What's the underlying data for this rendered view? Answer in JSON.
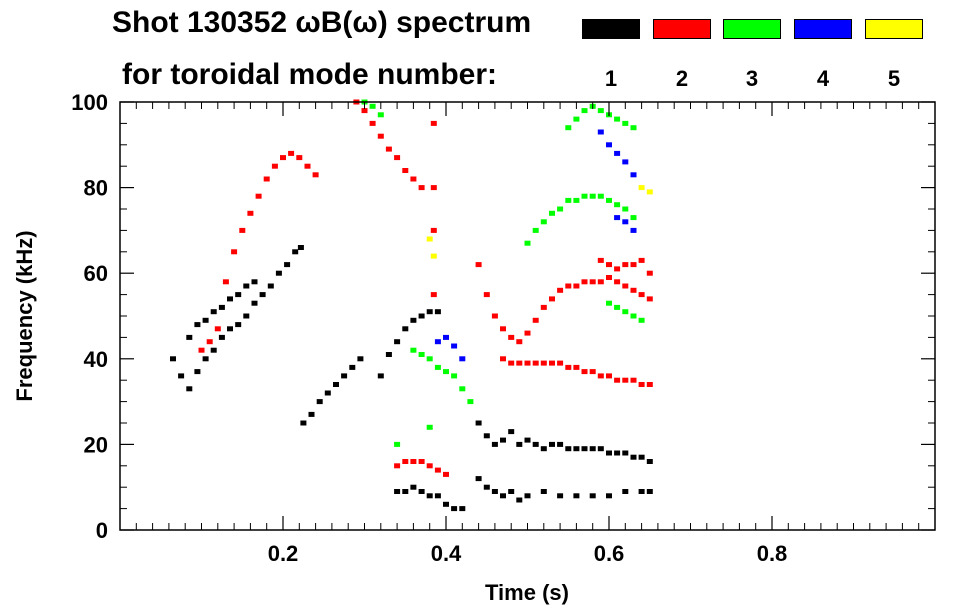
{
  "chart_data": {
    "type": "scatter",
    "title_line1": "Shot 130352 ωB(ω) spectrum",
    "title_line2": "for toroidal mode number:",
    "xlabel": "Time (s)",
    "ylabel": "Frequency (kHz)",
    "xlim": [
      0.0,
      1.0
    ],
    "ylim": [
      0,
      100
    ],
    "xticks": [
      0.2,
      0.4,
      0.6,
      0.8
    ],
    "xtick_labels": [
      "0.2",
      "0.4",
      "0.6",
      "0.8"
    ],
    "yticks": [
      0,
      20,
      40,
      60,
      80,
      100
    ],
    "ytick_labels": [
      "0",
      "20",
      "40",
      "60",
      "80",
      "100"
    ],
    "grid": false,
    "legend_position": "top-right",
    "legend": [
      {
        "label": "1",
        "color": "#000000"
      },
      {
        "label": "2",
        "color": "#ff0000"
      },
      {
        "label": "3",
        "color": "#00ff00"
      },
      {
        "label": "4",
        "color": "#0000ff"
      },
      {
        "label": "5",
        "color": "#ffff00"
      }
    ],
    "series": [
      {
        "name": "1",
        "color": "#000000",
        "points": [
          [
            0.065,
            40
          ],
          [
            0.075,
            36
          ],
          [
            0.085,
            33
          ],
          [
            0.095,
            37
          ],
          [
            0.105,
            40
          ],
          [
            0.115,
            42
          ],
          [
            0.125,
            45
          ],
          [
            0.135,
            47
          ],
          [
            0.145,
            48
          ],
          [
            0.155,
            50
          ],
          [
            0.165,
            53
          ],
          [
            0.175,
            55
          ],
          [
            0.185,
            57
          ],
          [
            0.195,
            60
          ],
          [
            0.205,
            62
          ],
          [
            0.215,
            65
          ],
          [
            0.222,
            66
          ],
          [
            0.085,
            45
          ],
          [
            0.095,
            48
          ],
          [
            0.105,
            49
          ],
          [
            0.115,
            51
          ],
          [
            0.125,
            52
          ],
          [
            0.135,
            54
          ],
          [
            0.145,
            55
          ],
          [
            0.155,
            57
          ],
          [
            0.165,
            58
          ],
          [
            0.225,
            25
          ],
          [
            0.235,
            27
          ],
          [
            0.245,
            30
          ],
          [
            0.255,
            32
          ],
          [
            0.265,
            34
          ],
          [
            0.275,
            36
          ],
          [
            0.285,
            38
          ],
          [
            0.295,
            40
          ],
          [
            0.32,
            36
          ],
          [
            0.33,
            41
          ],
          [
            0.34,
            44
          ],
          [
            0.35,
            47
          ],
          [
            0.36,
            49
          ],
          [
            0.37,
            50
          ],
          [
            0.38,
            51
          ],
          [
            0.39,
            51
          ],
          [
            0.44,
            25
          ],
          [
            0.45,
            22
          ],
          [
            0.46,
            20
          ],
          [
            0.47,
            21
          ],
          [
            0.48,
            23
          ],
          [
            0.49,
            20
          ],
          [
            0.5,
            21
          ],
          [
            0.51,
            20
          ],
          [
            0.52,
            19
          ],
          [
            0.53,
            20
          ],
          [
            0.54,
            20
          ],
          [
            0.55,
            19
          ],
          [
            0.56,
            19
          ],
          [
            0.57,
            19
          ],
          [
            0.58,
            19
          ],
          [
            0.59,
            19
          ],
          [
            0.6,
            18
          ],
          [
            0.61,
            18
          ],
          [
            0.62,
            18
          ],
          [
            0.63,
            17
          ],
          [
            0.64,
            17
          ],
          [
            0.65,
            16
          ],
          [
            0.44,
            12
          ],
          [
            0.45,
            10
          ],
          [
            0.46,
            9
          ],
          [
            0.47,
            8
          ],
          [
            0.48,
            9
          ],
          [
            0.49,
            7
          ],
          [
            0.5,
            8
          ],
          [
            0.52,
            9
          ],
          [
            0.54,
            8
          ],
          [
            0.56,
            8
          ],
          [
            0.58,
            8
          ],
          [
            0.6,
            8
          ],
          [
            0.62,
            9
          ],
          [
            0.64,
            9
          ],
          [
            0.65,
            9
          ],
          [
            0.34,
            9
          ],
          [
            0.35,
            9
          ],
          [
            0.36,
            10
          ],
          [
            0.37,
            9
          ],
          [
            0.38,
            8
          ],
          [
            0.39,
            8
          ],
          [
            0.4,
            6
          ],
          [
            0.41,
            5
          ],
          [
            0.42,
            5
          ]
        ]
      },
      {
        "name": "2",
        "color": "#ff0000",
        "points": [
          [
            0.13,
            58
          ],
          [
            0.14,
            65
          ],
          [
            0.15,
            70
          ],
          [
            0.16,
            74
          ],
          [
            0.17,
            78
          ],
          [
            0.18,
            82
          ],
          [
            0.19,
            85
          ],
          [
            0.2,
            87
          ],
          [
            0.21,
            88
          ],
          [
            0.22,
            87
          ],
          [
            0.23,
            85
          ],
          [
            0.24,
            83
          ],
          [
            0.1,
            42
          ],
          [
            0.11,
            44
          ],
          [
            0.12,
            47
          ],
          [
            0.29,
            100
          ],
          [
            0.3,
            98
          ],
          [
            0.31,
            95
          ],
          [
            0.32,
            92
          ],
          [
            0.33,
            89
          ],
          [
            0.34,
            87
          ],
          [
            0.35,
            84
          ],
          [
            0.36,
            82
          ],
          [
            0.37,
            80
          ],
          [
            0.385,
            95
          ],
          [
            0.385,
            80
          ],
          [
            0.385,
            70
          ],
          [
            0.385,
            55
          ],
          [
            0.44,
            62
          ],
          [
            0.45,
            55
          ],
          [
            0.46,
            50
          ],
          [
            0.47,
            47
          ],
          [
            0.48,
            45
          ],
          [
            0.49,
            44
          ],
          [
            0.5,
            46
          ],
          [
            0.51,
            49
          ],
          [
            0.52,
            52
          ],
          [
            0.53,
            54
          ],
          [
            0.54,
            56
          ],
          [
            0.55,
            57
          ],
          [
            0.56,
            57
          ],
          [
            0.57,
            58
          ],
          [
            0.58,
            58
          ],
          [
            0.59,
            58
          ],
          [
            0.6,
            59
          ],
          [
            0.61,
            58
          ],
          [
            0.62,
            57
          ],
          [
            0.63,
            56
          ],
          [
            0.64,
            55
          ],
          [
            0.65,
            54
          ],
          [
            0.47,
            40
          ],
          [
            0.48,
            39
          ],
          [
            0.49,
            39
          ],
          [
            0.5,
            39
          ],
          [
            0.51,
            39
          ],
          [
            0.52,
            39
          ],
          [
            0.53,
            39
          ],
          [
            0.54,
            39
          ],
          [
            0.55,
            38
          ],
          [
            0.56,
            38
          ],
          [
            0.57,
            37
          ],
          [
            0.58,
            37
          ],
          [
            0.59,
            36
          ],
          [
            0.6,
            36
          ],
          [
            0.61,
            35
          ],
          [
            0.62,
            35
          ],
          [
            0.63,
            35
          ],
          [
            0.64,
            34
          ],
          [
            0.65,
            34
          ],
          [
            0.59,
            63
          ],
          [
            0.6,
            62
          ],
          [
            0.61,
            61
          ],
          [
            0.62,
            62
          ],
          [
            0.63,
            62
          ],
          [
            0.64,
            63
          ],
          [
            0.65,
            60
          ],
          [
            0.34,
            15
          ],
          [
            0.35,
            16
          ],
          [
            0.36,
            16
          ],
          [
            0.37,
            16
          ],
          [
            0.38,
            15
          ],
          [
            0.39,
            14
          ],
          [
            0.4,
            13
          ]
        ]
      },
      {
        "name": "3",
        "color": "#00ff00",
        "points": [
          [
            0.36,
            42
          ],
          [
            0.37,
            41
          ],
          [
            0.38,
            40
          ],
          [
            0.39,
            38
          ],
          [
            0.4,
            37
          ],
          [
            0.41,
            36
          ],
          [
            0.42,
            33
          ],
          [
            0.43,
            30
          ],
          [
            0.5,
            67
          ],
          [
            0.51,
            70
          ],
          [
            0.52,
            72
          ],
          [
            0.53,
            74
          ],
          [
            0.54,
            75
          ],
          [
            0.55,
            77
          ],
          [
            0.56,
            77
          ],
          [
            0.57,
            78
          ],
          [
            0.58,
            78
          ],
          [
            0.59,
            78
          ],
          [
            0.6,
            77
          ],
          [
            0.61,
            76
          ],
          [
            0.62,
            75
          ],
          [
            0.63,
            73
          ],
          [
            0.55,
            94
          ],
          [
            0.56,
            96
          ],
          [
            0.57,
            98
          ],
          [
            0.58,
            99
          ],
          [
            0.59,
            98
          ],
          [
            0.6,
            97
          ],
          [
            0.61,
            96
          ],
          [
            0.62,
            95
          ],
          [
            0.63,
            94
          ],
          [
            0.3,
            100
          ],
          [
            0.31,
            99
          ],
          [
            0.32,
            97
          ],
          [
            0.6,
            53
          ],
          [
            0.61,
            52
          ],
          [
            0.62,
            51
          ],
          [
            0.63,
            50
          ],
          [
            0.64,
            49
          ],
          [
            0.34,
            20
          ],
          [
            0.38,
            24
          ]
        ]
      },
      {
        "name": "4",
        "color": "#0000ff",
        "points": [
          [
            0.39,
            44
          ],
          [
            0.4,
            45
          ],
          [
            0.41,
            43
          ],
          [
            0.42,
            40
          ],
          [
            0.59,
            93
          ],
          [
            0.6,
            90
          ],
          [
            0.61,
            88
          ],
          [
            0.62,
            86
          ],
          [
            0.63,
            83
          ],
          [
            0.61,
            73
          ],
          [
            0.62,
            72
          ],
          [
            0.63,
            70
          ]
        ]
      },
      {
        "name": "5",
        "color": "#ffff00",
        "points": [
          [
            0.38,
            68
          ],
          [
            0.385,
            64
          ],
          [
            0.64,
            80
          ],
          [
            0.65,
            79
          ]
        ]
      }
    ]
  }
}
